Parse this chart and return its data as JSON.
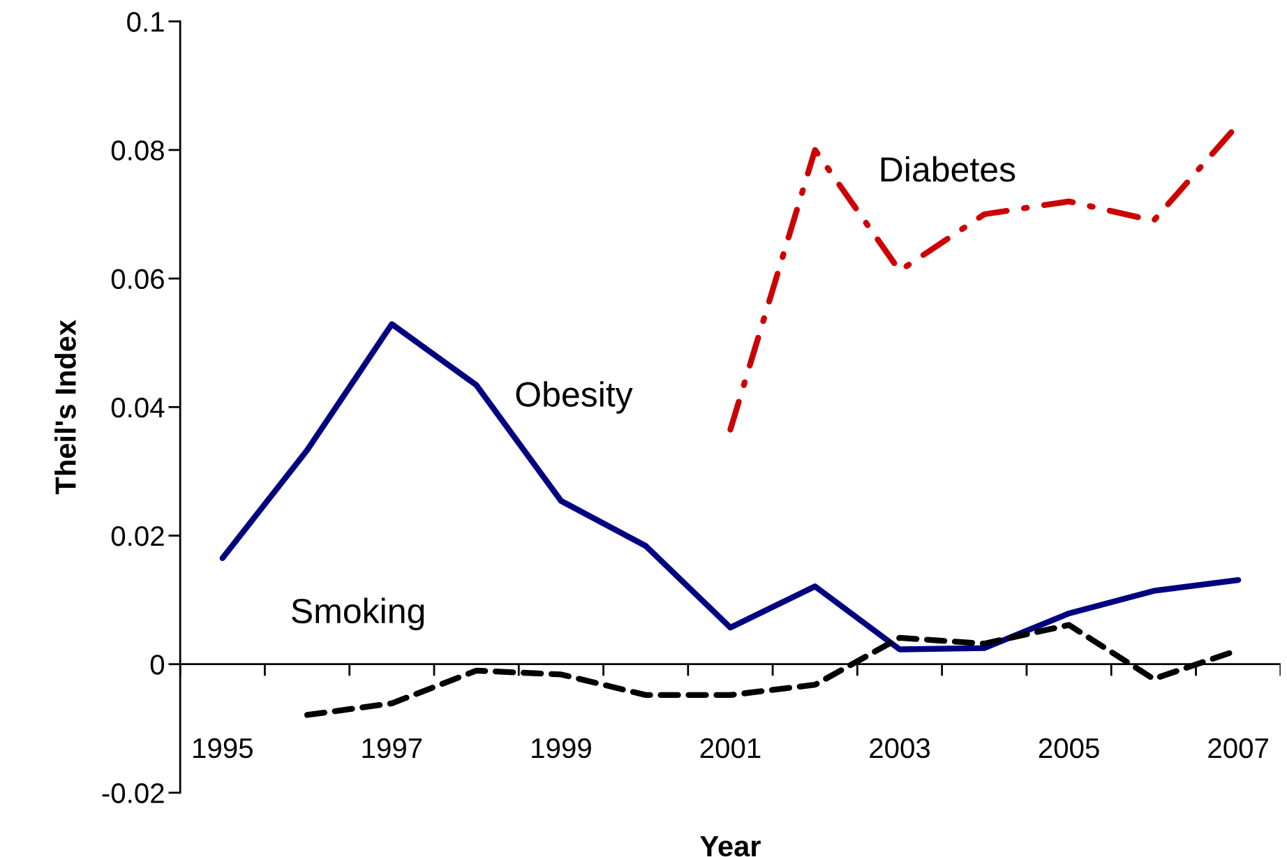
{
  "chart_data": {
    "type": "line",
    "xlabel": "Year",
    "ylabel": "Theil's Index",
    "categories": [
      "1995",
      null,
      "1997",
      null,
      "1999",
      null,
      "2001",
      null,
      "2003",
      null,
      "2005",
      null,
      "2007"
    ],
    "series": [
      {
        "name": "Obesity",
        "color": "#000080",
        "line_style": "solid",
        "values": [
          0.0165,
          0.0333,
          0.0529,
          0.0434,
          0.0254,
          0.0184,
          0.0057,
          0.0121,
          0.0023,
          0.0025,
          0.0079,
          0.0114,
          0.0131
        ]
      },
      {
        "name": "Smoking",
        "color": "#000000",
        "line_style": "dashed",
        "values": [
          null,
          -0.0079,
          -0.0061,
          -0.001,
          -0.0016,
          -0.0048,
          -0.0048,
          -0.0032,
          0.0041,
          0.0032,
          0.0061,
          -0.0023,
          0.0022
        ]
      },
      {
        "name": "Diabetes",
        "color": "#cc0000",
        "line_style": "dashdot",
        "values": [
          null,
          null,
          null,
          null,
          null,
          null,
          0.0365,
          0.08,
          0.0612,
          0.07,
          0.072,
          0.069,
          0.084
        ]
      }
    ],
    "ref_lines": [
      {
        "axis": "y",
        "value": 0
      }
    ],
    "ylim": [
      -0.02,
      0.1
    ],
    "yticks": [
      -0.02,
      0,
      0.02,
      0.04,
      0.06,
      0.08,
      0.1
    ],
    "grid": false,
    "legend": false,
    "marker": "none"
  }
}
